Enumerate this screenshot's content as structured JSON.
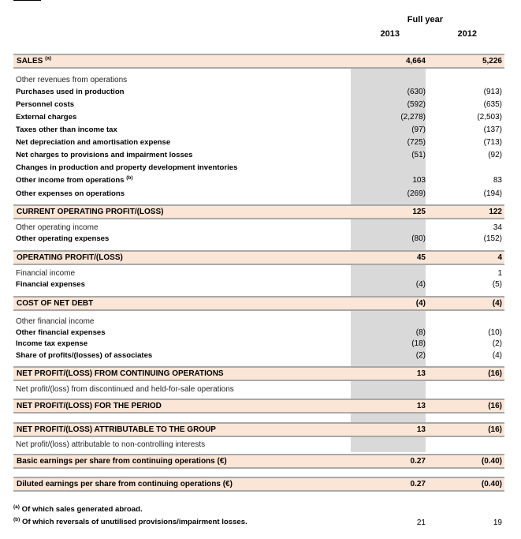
{
  "header": {
    "period": "Full year",
    "col1": "2013",
    "col2": "2012"
  },
  "rows": [
    {
      "label": "SALES",
      "sup": "(a)",
      "v1": "4,664",
      "v2": "5,226",
      "style": "tot"
    },
    {
      "label": "Other revenues from operations",
      "v1": "",
      "v2": "",
      "style": "light"
    },
    {
      "label": "Purchases used in production",
      "v1": "(630)",
      "v2": "(913)",
      "style": "bold"
    },
    {
      "label": "Personnel costs",
      "v1": "(592)",
      "v2": "(635)",
      "style": "bold"
    },
    {
      "label": "External charges",
      "v1": "(2,278)",
      "v2": "(2,503)",
      "style": "bold"
    },
    {
      "label": "Taxes other than income tax",
      "v1": "(97)",
      "v2": "(137)",
      "style": "bold"
    },
    {
      "label": "Net depreciation and amortisation expense",
      "v1": "(725)",
      "v2": "(713)",
      "style": "bold"
    },
    {
      "label": "Net charges to provisions and impairment losses",
      "v1": "(51)",
      "v2": "(92)",
      "style": "bold"
    },
    {
      "label": "Changes in production and property development inventories",
      "v1": "",
      "v2": "",
      "style": "bold"
    },
    {
      "label": "Other income from operations",
      "sup": "(b)",
      "v1": "103",
      "v2": "83",
      "style": "bold"
    },
    {
      "label": "Other expenses on operations",
      "v1": "(269)",
      "v2": "(194)",
      "style": "bold"
    },
    {
      "label": "CURRENT OPERATING PROFIT/(LOSS)",
      "v1": "125",
      "v2": "122",
      "style": "tot"
    },
    {
      "label": "Other operating income",
      "v1": "",
      "v2": "34",
      "style": "light"
    },
    {
      "label": "Other operating expenses",
      "v1": "(80)",
      "v2": "(152)",
      "style": "bold"
    },
    {
      "label": "OPERATING PROFIT/(LOSS)",
      "v1": "45",
      "v2": "4",
      "style": "tot"
    },
    {
      "label": "Financial income",
      "v1": "",
      "v2": "1",
      "style": "light"
    },
    {
      "label": "Financial expenses",
      "v1": "(4)",
      "v2": "(5)",
      "style": "bold"
    },
    {
      "label": "COST OF NET DEBT",
      "v1": "(4)",
      "v2": "(4)",
      "style": "tot"
    },
    {
      "label": "Other financial income",
      "v1": "",
      "v2": "",
      "style": "light"
    },
    {
      "label": "Other financial expenses",
      "v1": "(8)",
      "v2": "(10)",
      "style": "bold"
    },
    {
      "label": "Income tax expense",
      "v1": "(18)",
      "v2": "(2)",
      "style": "bold"
    },
    {
      "label": "Share of profits/(losses) of associates",
      "v1": "(2)",
      "v2": "(4)",
      "style": "bold"
    },
    {
      "label": "NET PROFIT/(LOSS) FROM CONTINUING OPERATIONS",
      "v1": "13",
      "v2": "(16)",
      "style": "tot"
    },
    {
      "label": "Net profit/(loss) from discontinued and held-for-sale operations",
      "v1": "",
      "v2": "",
      "style": "light"
    },
    {
      "label": "NET PROFIT/(LOSS) FOR THE PERIOD",
      "v1": "13",
      "v2": "(16)",
      "style": "tot"
    },
    {
      "label": "NET PROFIT/(LOSS) ATTRIBUTABLE TO THE GROUP",
      "v1": "13",
      "v2": "(16)",
      "style": "tot"
    },
    {
      "label": "Net profit/(loss) attributable to non-controlling interests",
      "v1": "",
      "v2": "",
      "style": "light"
    },
    {
      "label": "Basic earnings per share from continuing operations (€)",
      "v1": "0.27",
      "v2": "(0.40)",
      "style": "tot"
    },
    {
      "label": "Diluted earnings per share from continuing operations (€)",
      "v1": "0.27",
      "v2": "(0.40)",
      "style": "tot"
    }
  ],
  "footnotes": [
    {
      "mark": "(a)",
      "text": "Of which sales generated abroad.",
      "v1": "",
      "v2": ""
    },
    {
      "mark": "(b)",
      "text": "Of which reversals of unutilised provisions/impairment losses.",
      "v1": "21",
      "v2": "19"
    }
  ]
}
